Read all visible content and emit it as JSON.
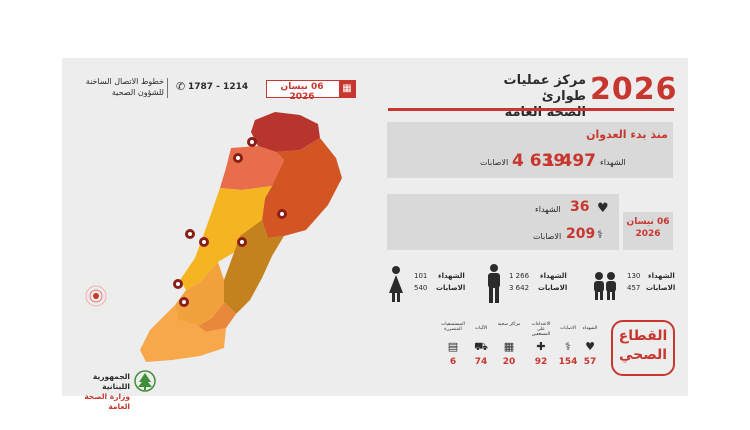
{
  "header": {
    "year": "2026",
    "title_line1": "مركز عمليات طوارئ",
    "title_line2": "الصحة العامة",
    "date": "06 نيسان 2026",
    "hotline_number": "1787 - 1214",
    "hotline_label_line1": "خطوط الاتصال الساخنة",
    "hotline_label_line2": "للشؤون الصحية"
  },
  "since_start": {
    "title": "منذ بدء العدوان",
    "deaths_label": "الشهداء",
    "deaths_value": "1 497",
    "injuries_label": "الاصابات",
    "injuries_value": "4 639"
  },
  "today": {
    "date_line1": "06 نيسان",
    "date_line2": "2026",
    "deaths_label": "الشهداء",
    "deaths_value": "36",
    "injuries_label": "الاصابات",
    "injuries_value": "209"
  },
  "demographics": [
    {
      "group": "children",
      "icon": "children-icon",
      "deaths_label": "الشهداء",
      "deaths": "130",
      "injuries_label": "الاصابات",
      "injuries": "457"
    },
    {
      "group": "men",
      "icon": "man-icon",
      "deaths_label": "الشهداء",
      "deaths": "1 266",
      "injuries_label": "الاصابات",
      "injuries": "3 642"
    },
    {
      "group": "women",
      "icon": "woman-icon",
      "deaths_label": "الشهداء",
      "deaths": "101",
      "injuries_label": "الاصابات",
      "injuries": "540"
    }
  ],
  "health_sector": {
    "title_line1": "القطاع",
    "title_line2": "الصحي",
    "items": [
      {
        "label": "الشهداء",
        "value": "57",
        "icon": "heart-icon"
      },
      {
        "label": "الاصابات",
        "value": "154",
        "icon": "injured-icon"
      },
      {
        "label": "الاعتداءات على المسعفين",
        "value": "92",
        "icon": "medic-icon"
      },
      {
        "label": "مراكز صحية",
        "value": "20",
        "icon": "clinic-icon"
      },
      {
        "label": "الآليات",
        "value": "74",
        "icon": "ambulance-icon"
      },
      {
        "label": "المستشفيات المتضررة",
        "value": "6",
        "icon": "hospital-icon"
      }
    ]
  },
  "logo": {
    "line1": "الجمهورية اللبنانية",
    "line2": "وزارة الصحة العامة"
  },
  "colors": {
    "accent": "#c7372f",
    "box": "#d9d9d9",
    "card": "#ededed"
  }
}
